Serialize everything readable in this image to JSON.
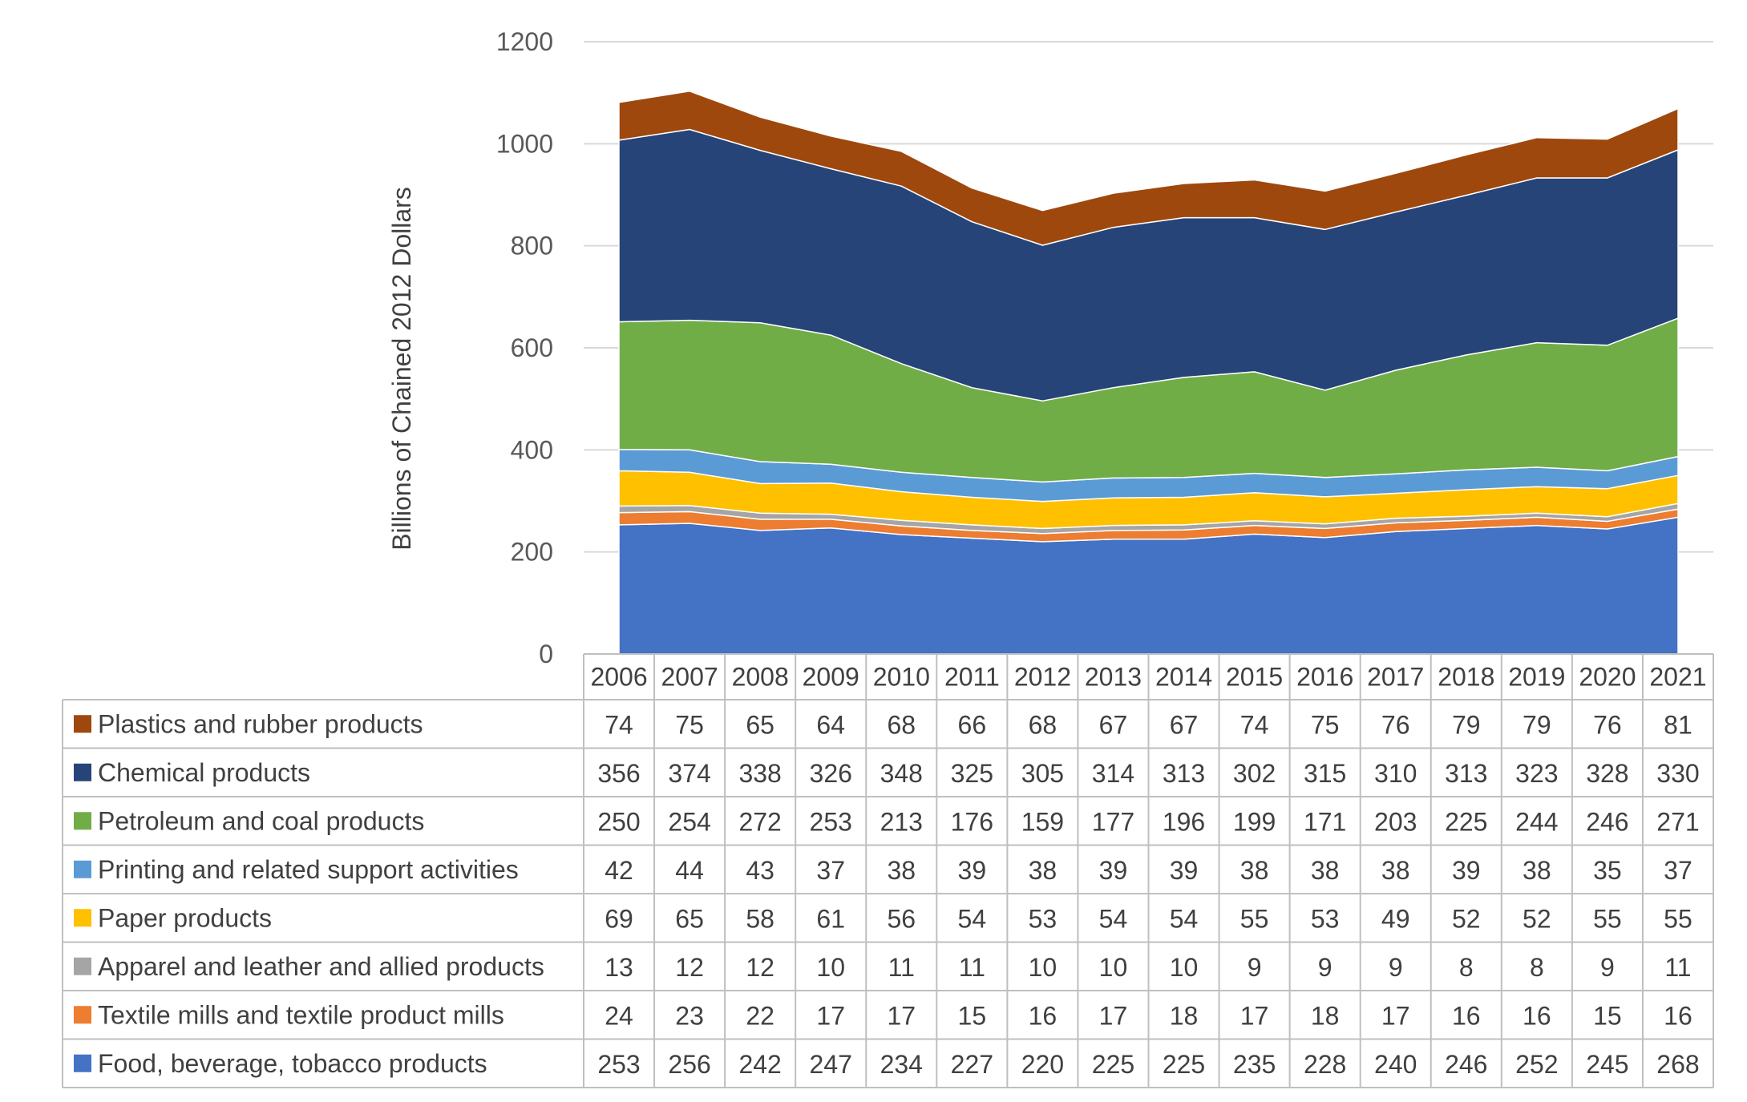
{
  "chart_data": {
    "type": "area",
    "stacked": true,
    "title": "",
    "xlabel": "",
    "ylabel": "Billions of Chained 2012 Dollars",
    "ylim": [
      0,
      1200
    ],
    "yticks": [
      0,
      200,
      400,
      600,
      800,
      1000,
      1200
    ],
    "grid": true,
    "legend_position": "data-table-below",
    "categories": [
      "2006",
      "2007",
      "2008",
      "2009",
      "2010",
      "2011",
      "2012",
      "2013",
      "2014",
      "2015",
      "2016",
      "2017",
      "2018",
      "2019",
      "2020",
      "2021"
    ],
    "series": [
      {
        "name": "Food, beverage, tobacco products",
        "color": "#4472C4",
        "values": [
          253,
          256,
          242,
          247,
          234,
          227,
          220,
          225,
          225,
          235,
          228,
          240,
          246,
          252,
          245,
          268
        ]
      },
      {
        "name": "Textile mills and textile product mills",
        "color": "#ED7D31",
        "values": [
          24,
          23,
          22,
          17,
          17,
          15,
          16,
          17,
          18,
          17,
          18,
          17,
          16,
          16,
          15,
          16
        ]
      },
      {
        "name": "Apparel and leather and allied products",
        "color": "#A5A5A5",
        "values": [
          13,
          12,
          12,
          10,
          11,
          11,
          10,
          10,
          10,
          9,
          9,
          9,
          8,
          8,
          9,
          11
        ]
      },
      {
        "name": "Paper products",
        "color": "#FFC000",
        "values": [
          69,
          65,
          58,
          61,
          56,
          54,
          53,
          54,
          54,
          55,
          53,
          49,
          52,
          52,
          55,
          55
        ]
      },
      {
        "name": "Printing and related support activities",
        "color": "#5B9BD5",
        "values": [
          42,
          44,
          43,
          37,
          38,
          39,
          38,
          39,
          39,
          38,
          38,
          38,
          39,
          38,
          35,
          37
        ]
      },
      {
        "name": "Petroleum and coal products",
        "color": "#70AD47",
        "values": [
          250,
          254,
          272,
          253,
          213,
          176,
          159,
          177,
          196,
          199,
          171,
          203,
          225,
          244,
          246,
          271
        ]
      },
      {
        "name": "Chemical products",
        "color": "#264478",
        "values": [
          356,
          374,
          338,
          326,
          348,
          325,
          305,
          314,
          313,
          302,
          315,
          310,
          313,
          323,
          328,
          330
        ]
      },
      {
        "name": "Plastics and rubber products",
        "color": "#9E480E",
        "values": [
          74,
          75,
          65,
          64,
          68,
          66,
          68,
          67,
          67,
          74,
          75,
          76,
          79,
          79,
          76,
          81
        ]
      }
    ]
  }
}
